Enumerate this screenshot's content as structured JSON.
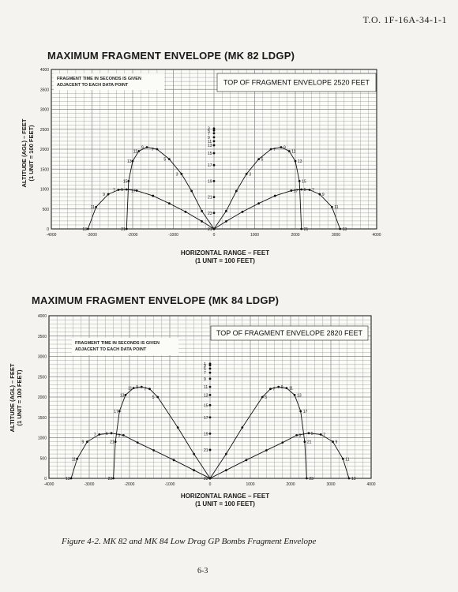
{
  "header": {
    "doc_id": "T.O. 1F-16A-34-1-1"
  },
  "chart_data": [
    {
      "type": "line",
      "title": "MAXIMUM FRAGMENT ENVELOPE (MK 82 LDGP)",
      "xlabel": "HORIZONTAL RANGE – FEET",
      "xlabel_sub": "(1 UNIT = 100 FEET)",
      "ylabel": "ALTITUDE (AGL) – FEET",
      "ylabel_sub": "(1 UNIT = 100 FEET)",
      "xlim": [
        -4000,
        4000
      ],
      "ylim": [
        0,
        4000
      ],
      "x_ticks": [
        -4000,
        -3000,
        -2000,
        -1000,
        0,
        1000,
        2000,
        3000,
        4000
      ],
      "y_ticks": [
        0,
        500,
        1000,
        1500,
        2000,
        2500,
        3000,
        3500,
        4000
      ],
      "grid": true,
      "note": "FRAGMENT TIME IN SECONDS IS GIVEN ADJACENT TO EACH DATA POINT",
      "top_label": "TOP OF FRAGMENT ENVELOPE 2520 FEET",
      "series": [
        {
          "x": [
            -3100,
            -2900,
            -2600,
            -2350,
            -2150,
            -1900,
            -1500,
            -1100,
            -700,
            -300,
            0
          ],
          "y": [
            0,
            550,
            870,
            980,
            990,
            960,
            830,
            640,
            430,
            190,
            0
          ],
          "labels": [
            "13",
            "11",
            "9",
            "7",
            "5",
            "17",
            "",
            "",
            "",
            "",
            ""
          ]
        },
        {
          "x": [
            -2150,
            -2100,
            -2000,
            -1850,
            -1650,
            -1400,
            -1100,
            -800,
            -550,
            -300,
            0
          ],
          "y": [
            0,
            1200,
            1700,
            1950,
            2050,
            2000,
            1750,
            1380,
            950,
            450,
            0
          ],
          "labels": [
            "21",
            "15",
            "13",
            "11",
            "9",
            "7",
            "5",
            "3",
            "",
            "",
            ""
          ]
        },
        {
          "x": [
            0,
            300,
            700,
            1100,
            1500,
            1900,
            2150,
            2350,
            2600,
            2900,
            3100
          ],
          "y": [
            0,
            190,
            430,
            640,
            830,
            960,
            990,
            980,
            870,
            550,
            0
          ],
          "labels": [
            "",
            "",
            "",
            "",
            "",
            "17",
            "5",
            "7",
            "9",
            "11",
            "13"
          ]
        },
        {
          "x": [
            0,
            300,
            550,
            800,
            1100,
            1400,
            1650,
            1850,
            2000,
            2100,
            2150
          ],
          "y": [
            0,
            450,
            950,
            1380,
            1750,
            2000,
            2050,
            1950,
            1700,
            1200,
            0
          ],
          "labels": [
            "",
            "",
            "",
            "3",
            "5",
            "7",
            "9",
            "11",
            "13",
            "15",
            "21"
          ]
        },
        {
          "x": [
            0,
            0,
            0,
            0,
            0,
            0,
            0,
            0,
            0,
            0,
            0,
            0
          ],
          "y": [
            0,
            400,
            800,
            1200,
            1600,
            1900,
            2100,
            2200,
            2300,
            2400,
            2470,
            2520
          ],
          "labels": [
            "21",
            "23",
            "21",
            "19",
            "17",
            "15",
            "13",
            "11",
            "9",
            "7",
            "5",
            "3"
          ]
        }
      ]
    },
    {
      "type": "line",
      "title": "MAXIMUM FRAGMENT ENVELOPE (MK 84 LDGP)",
      "xlabel": "HORIZONTAL RANGE – FEET",
      "xlabel_sub": "(1 UNIT = 100 FEET)",
      "ylabel": "ALTITUDE (AGL) – FEET",
      "ylabel_sub": "(1 UNIT = 100 FEET)",
      "xlim": [
        -4000,
        4000
      ],
      "ylim": [
        0,
        4000
      ],
      "x_ticks": [
        -4000,
        -3000,
        -2000,
        -1000,
        0,
        1000,
        2000,
        3000,
        4000
      ],
      "y_ticks": [
        0,
        500,
        1000,
        1500,
        2000,
        2500,
        3000,
        3500,
        4000
      ],
      "grid": true,
      "note": "FRAGMENT TIME IN SECONDS IS GIVEN ADJACENT TO EACH DATA POINT",
      "top_label": "TOP OF FRAGMENT ENVELOPE 2820 FEET",
      "series": [
        {
          "x": [
            -3450,
            -3300,
            -3050,
            -2750,
            -2450,
            -2150,
            -1800,
            -1400,
            -900,
            -400,
            0
          ],
          "y": [
            0,
            480,
            900,
            1080,
            1110,
            1060,
            880,
            690,
            450,
            200,
            0
          ],
          "labels": [
            "13",
            "11",
            "9",
            "7",
            "5",
            "3",
            "",
            "",
            "",
            "",
            ""
          ]
        },
        {
          "x": [
            -2400,
            -2350,
            -2250,
            -2100,
            -1900,
            -1700,
            -1500,
            -1300,
            -800,
            -400,
            0
          ],
          "y": [
            0,
            900,
            1650,
            2050,
            2220,
            2250,
            2200,
            2000,
            1250,
            600,
            0
          ],
          "labels": [
            "23",
            "21",
            "17",
            "13",
            "11",
            "9",
            "7",
            "5",
            "",
            "",
            ""
          ]
        },
        {
          "x": [
            0,
            400,
            900,
            1400,
            1800,
            2150,
            2450,
            2750,
            3050,
            3300,
            3450
          ],
          "y": [
            0,
            200,
            450,
            690,
            880,
            1060,
            1110,
            1080,
            900,
            480,
            0
          ],
          "labels": [
            "",
            "",
            "",
            "",
            "",
            "3",
            "5",
            "7",
            "9",
            "11",
            "13"
          ]
        },
        {
          "x": [
            0,
            400,
            800,
            1300,
            1500,
            1700,
            1900,
            2100,
            2250,
            2350,
            2400
          ],
          "y": [
            0,
            600,
            1250,
            2000,
            2200,
            2250,
            2220,
            2050,
            1650,
            900,
            0
          ],
          "labels": [
            "",
            "",
            "",
            "5",
            "7",
            "9",
            "11",
            "13",
            "17",
            "21",
            "23"
          ]
        },
        {
          "x": [
            0,
            0,
            0,
            0,
            0,
            0,
            0,
            0,
            0,
            0,
            0,
            0
          ],
          "y": [
            0,
            700,
            1100,
            1500,
            1800,
            2050,
            2250,
            2450,
            2600,
            2700,
            2780,
            2820
          ],
          "labels": [
            "23",
            "21",
            "19",
            "17",
            "15",
            "13",
            "11",
            "9",
            "7",
            "5",
            "3",
            "1"
          ]
        }
      ]
    }
  ],
  "footer": {
    "caption": "Figure 4-2.  MK 82 and MK 84 Low Drag GP Bombs Fragment Envelope",
    "page": "6-3"
  }
}
